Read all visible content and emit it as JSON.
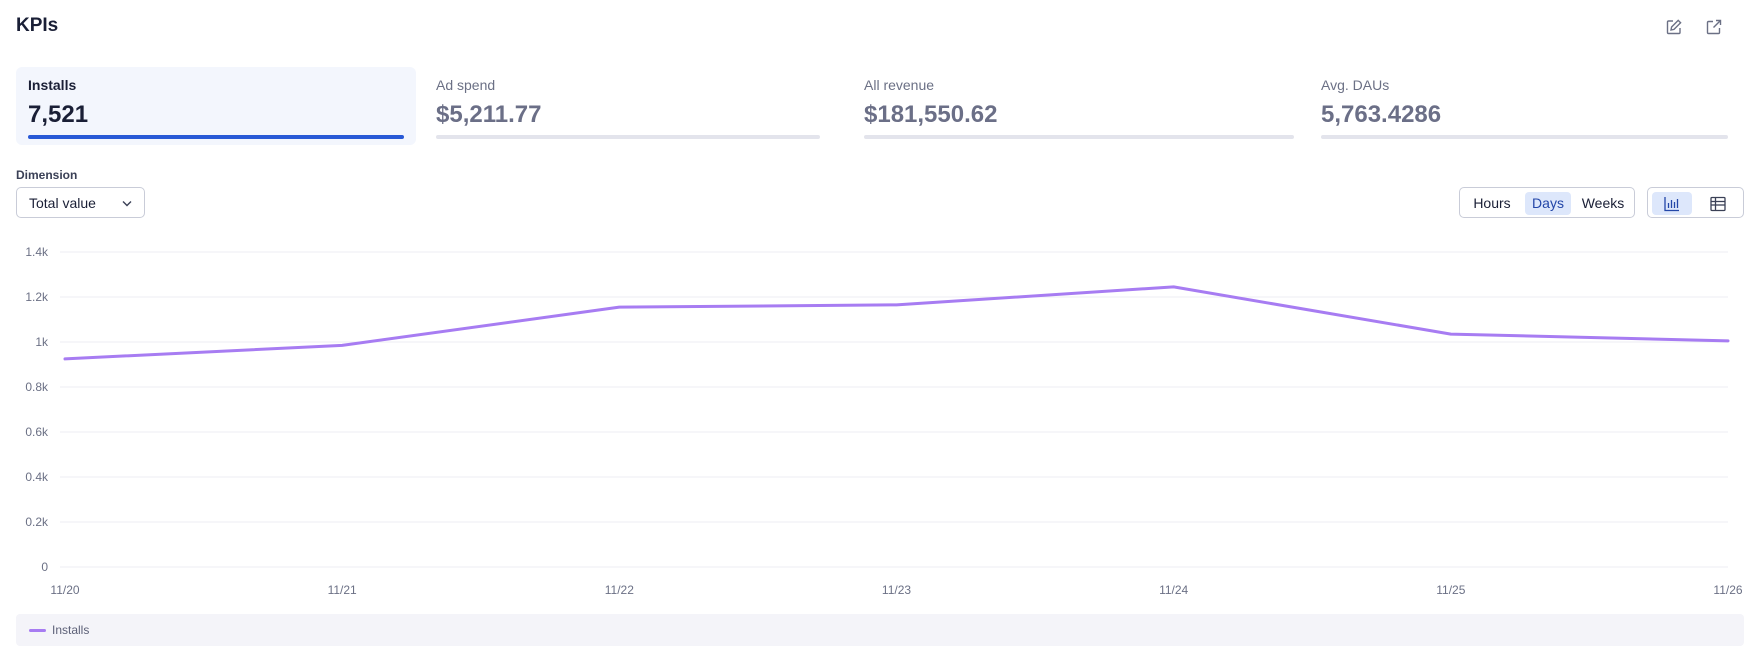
{
  "header": {
    "title": "KPIs",
    "actions": [
      {
        "icon": "edit-icon"
      },
      {
        "icon": "export-icon"
      }
    ]
  },
  "kpis": [
    {
      "label": "Installs",
      "value": "7,521",
      "active": true
    },
    {
      "label": "Ad spend",
      "value": "$5,211.77",
      "active": false
    },
    {
      "label": "All revenue",
      "value": "$181,550.62",
      "active": false
    },
    {
      "label": "Avg. DAUs",
      "value": "5,763.4286",
      "active": false
    }
  ],
  "dimension": {
    "label": "Dimension",
    "selected": "Total value",
    "icon": "chevron-down-icon"
  },
  "granularity": {
    "options": [
      "Hours",
      "Days",
      "Weeks"
    ],
    "selected": "Days"
  },
  "view_toggle": {
    "options": [
      {
        "icon": "bar-chart-icon",
        "active": true
      },
      {
        "icon": "table-icon",
        "active": false
      }
    ]
  },
  "colors": {
    "accent": "#2859d6",
    "series": "#a77cf2",
    "grid": "#eeeef3",
    "axis_text": "#6b7085"
  },
  "chart_data": {
    "type": "line",
    "x": [
      "11/20",
      "11/21",
      "11/22",
      "11/23",
      "11/24",
      "11/25",
      "11/26"
    ],
    "y_ticks": [
      "0",
      "0.2k",
      "0.4k",
      "0.6k",
      "0.8k",
      "1k",
      "1.2k",
      "1.4k"
    ],
    "ylim": [
      0,
      1400
    ],
    "grid": true,
    "legend_position": "bottom",
    "series": [
      {
        "name": "Installs",
        "values": [
          925,
          985,
          1155,
          1165,
          1245,
          1035,
          1005
        ]
      }
    ]
  }
}
